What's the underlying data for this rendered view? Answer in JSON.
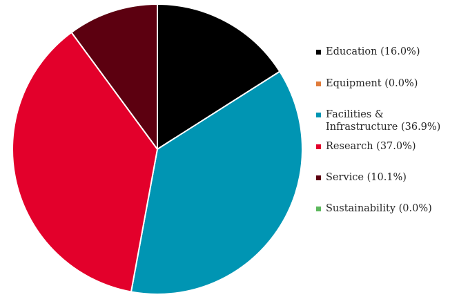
{
  "chart_data": {
    "type": "pie",
    "title": "",
    "slices": [
      {
        "label": "Education",
        "value": 16.0,
        "color": "#000000",
        "legend_text": "Education (16.0%)"
      },
      {
        "label": "Equipment",
        "value": 0.0,
        "color": "#e07b39",
        "legend_text": "Equipment (0.0%)"
      },
      {
        "label": "Facilities & Infrastructure",
        "value": 36.9,
        "color": "#0095b3",
        "legend_text": "Facilities & Infrastructure (36.9%)"
      },
      {
        "label": "Research",
        "value": 37.0,
        "color": "#e3002b",
        "legend_text": "Research (37.0%)"
      },
      {
        "label": "Service",
        "value": 10.1,
        "color": "#5c0010",
        "legend_text": "Service (10.1%)"
      },
      {
        "label": "Sustainability",
        "value": 0.0,
        "color": "#5cb85c",
        "legend_text": "Sustainability (0.0%)"
      }
    ],
    "start_angle_deg": 0,
    "direction": "clockwise",
    "legend_position": "right"
  }
}
